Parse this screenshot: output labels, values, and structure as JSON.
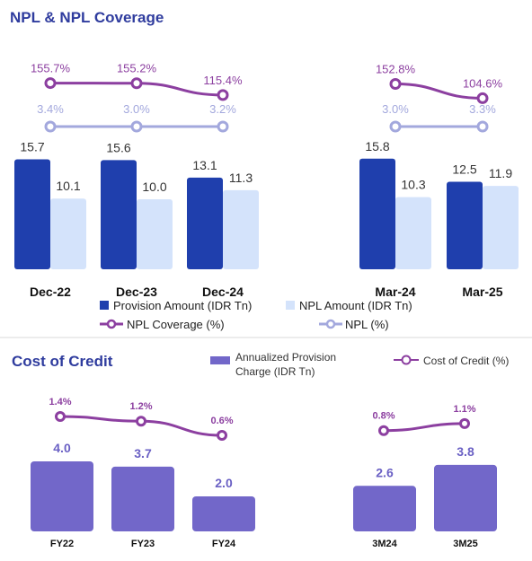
{
  "colors": {
    "title": "#2f3c9e",
    "provision": "#1f3fad",
    "npl_amount": "#d4e3fb",
    "coverage_line": "#8c3fa0",
    "npl_line": "#a3a8dd",
    "cost_bar": "#7267c9",
    "divider": "#d9d9d9"
  },
  "chart_data": [
    {
      "type": "bar",
      "title": "NPL & NPL Coverage",
      "categories": [
        "Dec-22",
        "Dec-23",
        "Dec-24",
        "Mar-24",
        "Mar-25"
      ],
      "series": [
        {
          "name": "Provision Amount (IDR Tn)",
          "values": [
            15.7,
            15.6,
            13.1,
            15.8,
            12.5
          ],
          "labels": [
            "15.7",
            "15.6",
            "13.1",
            "15.8",
            "12.5"
          ]
        },
        {
          "name": "NPL Amount (IDR Tn)",
          "values": [
            10.1,
            10.0,
            11.3,
            10.3,
            11.9
          ],
          "labels": [
            "10.1",
            "10.0",
            "11.3",
            "10.3",
            "11.9"
          ]
        }
      ],
      "lines": [
        {
          "name": "NPL Coverage (%)",
          "values": [
            155.7,
            155.2,
            115.4,
            152.8,
            104.6
          ],
          "labels": [
            "155.7%",
            "155.2%",
            "115.4%",
            "152.8%",
            "104.6%"
          ]
        },
        {
          "name": "NPL (%)",
          "values": [
            3.4,
            3.0,
            3.2,
            3.0,
            3.3
          ],
          "labels": [
            "3.4%",
            "3.0%",
            "3.2%",
            "3.0%",
            "3.3%"
          ]
        }
      ],
      "line_groups": [
        [
          0,
          1,
          2
        ],
        [
          3,
          4
        ]
      ],
      "legend_position": "bottom",
      "grid": false
    },
    {
      "type": "bar",
      "title": "Cost of Credit",
      "categories": [
        "FY22",
        "FY23",
        "FY24",
        "3M24",
        "3M25"
      ],
      "series": [
        {
          "name": "Annualized Provision Charge (IDR Tn)",
          "name_lines": [
            "Annualized Provision",
            "Charge (IDR Tn)"
          ],
          "values": [
            4.0,
            3.7,
            2.0,
            2.6,
            3.8
          ],
          "labels": [
            "4.0",
            "3.7",
            "2.0",
            "2.6",
            "3.8"
          ]
        }
      ],
      "lines": [
        {
          "name": "Cost of Credit (%)",
          "values": [
            1.4,
            1.2,
            0.6,
            0.8,
            1.1
          ],
          "labels": [
            "1.4%",
            "1.2%",
            "0.6%",
            "0.8%",
            "1.1%"
          ]
        }
      ],
      "line_groups": [
        [
          0,
          1,
          2
        ],
        [
          3,
          4
        ]
      ],
      "legend_position": "top-right",
      "grid": false
    }
  ]
}
